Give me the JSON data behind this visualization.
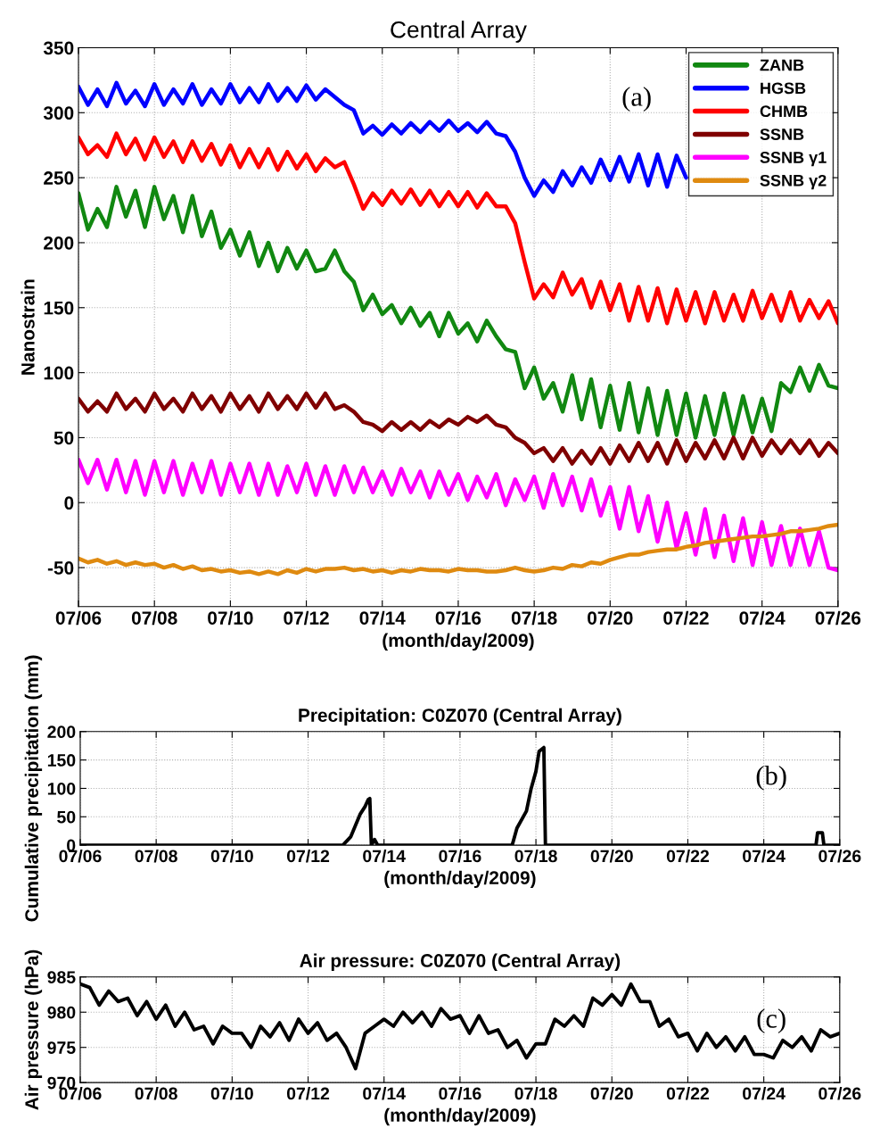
{
  "chart_data": [
    {
      "type": "line",
      "title": "Central Array",
      "xlabel": "(month/day/2009)",
      "ylabel": "Nanostrain",
      "legend": "top right",
      "grid": true,
      "annotations": [
        "(a)"
      ],
      "ylim": [
        -80,
        350
      ],
      "yticks": [
        -50,
        0,
        50,
        100,
        150,
        200,
        250,
        300,
        350
      ],
      "xlim": [
        "2009-07-06",
        "2009-07-26"
      ],
      "xticks": [
        {
          "value": "2009-07-06",
          "label": "07/06"
        },
        {
          "value": "2009-07-08",
          "label": "07/08"
        },
        {
          "value": "2009-07-10",
          "label": "07/10"
        },
        {
          "value": "2009-07-12",
          "label": "07/12"
        },
        {
          "value": "2009-07-14",
          "label": "07/14"
        },
        {
          "value": "2009-07-16",
          "label": "07/16"
        },
        {
          "value": "2009-07-18",
          "label": "07/18"
        },
        {
          "value": "2009-07-20",
          "label": "07/20"
        },
        {
          "value": "2009-07-22",
          "label": "07/22"
        },
        {
          "value": "2009-07-24",
          "label": "07/24"
        },
        {
          "value": "2009-07-26",
          "label": "07/26"
        }
      ],
      "x": [
        "2009-07-06T00:00",
        "2009-07-06T06:00",
        "2009-07-06T12:00",
        "2009-07-06T18:00",
        "2009-07-07T00:00",
        "2009-07-07T06:00",
        "2009-07-07T12:00",
        "2009-07-07T18:00",
        "2009-07-08T00:00",
        "2009-07-08T06:00",
        "2009-07-08T12:00",
        "2009-07-08T18:00",
        "2009-07-09T00:00",
        "2009-07-09T06:00",
        "2009-07-09T12:00",
        "2009-07-09T18:00",
        "2009-07-10T00:00",
        "2009-07-10T06:00",
        "2009-07-10T12:00",
        "2009-07-10T18:00",
        "2009-07-11T00:00",
        "2009-07-11T06:00",
        "2009-07-11T12:00",
        "2009-07-11T18:00",
        "2009-07-12T00:00",
        "2009-07-12T06:00",
        "2009-07-12T12:00",
        "2009-07-12T18:00",
        "2009-07-13T00:00",
        "2009-07-13T06:00",
        "2009-07-13T12:00",
        "2009-07-13T18:00",
        "2009-07-14T00:00",
        "2009-07-14T06:00",
        "2009-07-14T12:00",
        "2009-07-14T18:00",
        "2009-07-15T00:00",
        "2009-07-15T06:00",
        "2009-07-15T12:00",
        "2009-07-15T18:00",
        "2009-07-16T00:00",
        "2009-07-16T06:00",
        "2009-07-16T12:00",
        "2009-07-16T18:00",
        "2009-07-17T00:00",
        "2009-07-17T06:00",
        "2009-07-17T12:00",
        "2009-07-17T18:00",
        "2009-07-18T00:00",
        "2009-07-18T06:00",
        "2009-07-18T12:00",
        "2009-07-18T18:00",
        "2009-07-19T00:00",
        "2009-07-19T06:00",
        "2009-07-19T12:00",
        "2009-07-19T18:00",
        "2009-07-20T00:00",
        "2009-07-20T06:00",
        "2009-07-20T12:00",
        "2009-07-20T18:00",
        "2009-07-21T00:00",
        "2009-07-21T06:00",
        "2009-07-21T12:00",
        "2009-07-21T18:00",
        "2009-07-22T00:00",
        "2009-07-22T06:00",
        "2009-07-22T12:00",
        "2009-07-22T18:00",
        "2009-07-23T00:00",
        "2009-07-23T06:00",
        "2009-07-23T12:00",
        "2009-07-23T18:00",
        "2009-07-24T00:00",
        "2009-07-24T06:00",
        "2009-07-24T12:00",
        "2009-07-24T18:00",
        "2009-07-25T00:00",
        "2009-07-25T06:00",
        "2009-07-25T12:00",
        "2009-07-25T18:00",
        "2009-07-26T00:00"
      ],
      "series": [
        {
          "name": "ZANB",
          "color": "#118811",
          "values": [
            238,
            210,
            226,
            212,
            243,
            220,
            240,
            212,
            243,
            218,
            236,
            208,
            236,
            205,
            224,
            196,
            210,
            190,
            208,
            182,
            200,
            178,
            196,
            180,
            194,
            178,
            180,
            194,
            178,
            170,
            148,
            160,
            145,
            152,
            138,
            150,
            136,
            146,
            128,
            146,
            130,
            138,
            124,
            140,
            128,
            118,
            116,
            88,
            104,
            80,
            92,
            70,
            98,
            64,
            95,
            58,
            90,
            56,
            92,
            54,
            88,
            52,
            86,
            52,
            84,
            50,
            82,
            52,
            84,
            52,
            82,
            54,
            80,
            55,
            92,
            85,
            104,
            86,
            106,
            90,
            88
          ]
        },
        {
          "name": "HGSB",
          "color": "#0000ff",
          "values": [
            320,
            306,
            318,
            305,
            323,
            307,
            317,
            305,
            322,
            306,
            318,
            307,
            322,
            306,
            318,
            307,
            322,
            308,
            319,
            308,
            322,
            309,
            319,
            309,
            321,
            310,
            318,
            312,
            306,
            302,
            284,
            290,
            283,
            291,
            284,
            292,
            285,
            293,
            286,
            294,
            286,
            292,
            285,
            293,
            284,
            282,
            270,
            250,
            236,
            248,
            239,
            255,
            244,
            258,
            246,
            264,
            248,
            266,
            247,
            268,
            244,
            268,
            243,
            267,
            250,
            null,
            null,
            null,
            null,
            null,
            null,
            null,
            null,
            null,
            null,
            null,
            null,
            null,
            null,
            null,
            null
          ]
        },
        {
          "name": "CHMB",
          "color": "#ff0000",
          "values": [
            281,
            268,
            275,
            266,
            284,
            268,
            280,
            264,
            281,
            266,
            278,
            262,
            278,
            263,
            276,
            260,
            275,
            258,
            272,
            258,
            272,
            256,
            270,
            257,
            268,
            255,
            265,
            258,
            262,
            245,
            226,
            238,
            229,
            240,
            230,
            241,
            229,
            240,
            228,
            239,
            228,
            239,
            227,
            238,
            228,
            228,
            215,
            185,
            157,
            168,
            158,
            177,
            160,
            172,
            150,
            170,
            148,
            168,
            140,
            166,
            140,
            165,
            138,
            164,
            140,
            162,
            138,
            162,
            140,
            160,
            140,
            163,
            142,
            160,
            140,
            162,
            140,
            156,
            142,
            155,
            138
          ]
        },
        {
          "name": "SSNB",
          "color": "#800000",
          "values": [
            80,
            70,
            78,
            70,
            84,
            72,
            80,
            70,
            84,
            72,
            80,
            70,
            84,
            72,
            82,
            70,
            84,
            72,
            82,
            70,
            84,
            72,
            82,
            72,
            84,
            73,
            84,
            72,
            75,
            70,
            62,
            60,
            55,
            62,
            56,
            62,
            56,
            63,
            58,
            64,
            60,
            66,
            62,
            67,
            60,
            58,
            50,
            46,
            38,
            42,
            32,
            42,
            30,
            40,
            30,
            42,
            30,
            44,
            32,
            46,
            32,
            46,
            30,
            48,
            32,
            46,
            34,
            48,
            34,
            50,
            34,
            50,
            36,
            48,
            38,
            48,
            38,
            48,
            36,
            46,
            38
          ]
        },
        {
          "name": "SSNB γ1",
          "color": "#ff00ff",
          "values": [
            33,
            15,
            33,
            10,
            33,
            8,
            32,
            6,
            32,
            8,
            32,
            6,
            30,
            8,
            32,
            6,
            30,
            8,
            30,
            6,
            30,
            6,
            28,
            8,
            30,
            6,
            28,
            6,
            28,
            8,
            27,
            8,
            24,
            6,
            26,
            8,
            24,
            4,
            24,
            6,
            22,
            2,
            20,
            4,
            22,
            -2,
            18,
            2,
            20,
            -4,
            22,
            -2,
            20,
            -6,
            18,
            -10,
            12,
            -20,
            12,
            -22,
            5,
            -30,
            0,
            -35,
            -8,
            -40,
            -5,
            -42,
            -10,
            -45,
            -12,
            -48,
            -15,
            -48,
            -18,
            -48,
            -20,
            -48,
            -22,
            -50,
            -52
          ]
        },
        {
          "name": "SSNB γ2",
          "color": "#df8a10",
          "values": [
            -43,
            -46,
            -44,
            -47,
            -45,
            -48,
            -46,
            -48,
            -47,
            -50,
            -48,
            -51,
            -49,
            -52,
            -51,
            -53,
            -52,
            -54,
            -53,
            -55,
            -53,
            -55,
            -52,
            -54,
            -51,
            -53,
            -51,
            -51,
            -50,
            -52,
            -51,
            -53,
            -52,
            -54,
            -52,
            -53,
            -51,
            -52,
            -52,
            -53,
            -51,
            -52,
            -52,
            -53,
            -53,
            -52,
            -50,
            -52,
            -53,
            -52,
            -50,
            -51,
            -48,
            -49,
            -46,
            -47,
            -44,
            -42,
            -40,
            -40,
            -38,
            -37,
            -36,
            -36,
            -34,
            -33,
            -31,
            -30,
            -29,
            -28,
            -27,
            -26,
            -26,
            -25,
            -24,
            -22,
            -22,
            -21,
            -20,
            -18,
            -17
          ]
        }
      ]
    },
    {
      "type": "line",
      "title": "Precipitation: C0Z070 (Central Array)",
      "xlabel": "(month/day/2009)",
      "ylabel": "Cumulative precipitation (mm)",
      "grid": true,
      "annotations": [
        "(b)"
      ],
      "ylim": [
        0,
        200
      ],
      "yticks": [
        0,
        50,
        100,
        150,
        200
      ],
      "xlim": [
        "2009-07-06",
        "2009-07-26"
      ],
      "xticks": [
        {
          "value": "2009-07-06",
          "label": "07/06"
        },
        {
          "value": "2009-07-08",
          "label": "07/08"
        },
        {
          "value": "2009-07-10",
          "label": "07/10"
        },
        {
          "value": "2009-07-12",
          "label": "07/12"
        },
        {
          "value": "2009-07-14",
          "label": "07/14"
        },
        {
          "value": "2009-07-16",
          "label": "07/16"
        },
        {
          "value": "2009-07-18",
          "label": "07/18"
        },
        {
          "value": "2009-07-20",
          "label": "07/20"
        },
        {
          "value": "2009-07-22",
          "label": "07/22"
        },
        {
          "value": "2009-07-24",
          "label": "07/24"
        },
        {
          "value": "2009-07-26",
          "label": "07/26"
        }
      ],
      "x": [
        "2009-07-06T00:00",
        "2009-07-12T22:00",
        "2009-07-13T03:00",
        "2009-07-13T06:00",
        "2009-07-13T09:00",
        "2009-07-13T12:00",
        "2009-07-13T14:00",
        "2009-07-13T15:00",
        "2009-07-13T16:00",
        "2009-07-13T18:00",
        "2009-07-13T20:00",
        "2009-07-17T09:00",
        "2009-07-17T12:00",
        "2009-07-17T18:00",
        "2009-07-17T21:00",
        "2009-07-18T00:00",
        "2009-07-18T02:00",
        "2009-07-18T05:00",
        "2009-07-18T06:00",
        "2009-07-25T09:00",
        "2009-07-25T10:00",
        "2009-07-25T13:00",
        "2009-07-25T14:00",
        "2009-07-26T00:00"
      ],
      "series": [
        {
          "color": "#000000",
          "values": [
            0,
            0,
            15,
            35,
            55,
            68,
            80,
            82,
            0,
            10,
            0,
            0,
            30,
            60,
            100,
            130,
            165,
            172,
            0,
            0,
            22,
            22,
            0,
            0
          ]
        }
      ]
    },
    {
      "type": "line",
      "title": "Air pressure: C0Z070 (Central Array)",
      "xlabel": "(month/day/2009)",
      "ylabel": "Air pressure (hPa)",
      "grid": true,
      "annotations": [
        "(c)"
      ],
      "ylim": [
        970,
        985
      ],
      "yticks": [
        970,
        975,
        980,
        985
      ],
      "xlim": [
        "2009-07-06",
        "2009-07-26"
      ],
      "xticks": [
        {
          "value": "2009-07-06",
          "label": "07/06"
        },
        {
          "value": "2009-07-08",
          "label": "07/08"
        },
        {
          "value": "2009-07-10",
          "label": "07/10"
        },
        {
          "value": "2009-07-12",
          "label": "07/12"
        },
        {
          "value": "2009-07-14",
          "label": "07/14"
        },
        {
          "value": "2009-07-16",
          "label": "07/16"
        },
        {
          "value": "2009-07-18",
          "label": "07/18"
        },
        {
          "value": "2009-07-20",
          "label": "07/20"
        },
        {
          "value": "2009-07-22",
          "label": "07/22"
        },
        {
          "value": "2009-07-24",
          "label": "07/24"
        },
        {
          "value": "2009-07-26",
          "label": "07/26"
        }
      ],
      "x": [
        "2009-07-06T00:00",
        "2009-07-06T06:00",
        "2009-07-06T12:00",
        "2009-07-06T18:00",
        "2009-07-07T00:00",
        "2009-07-07T06:00",
        "2009-07-07T12:00",
        "2009-07-07T18:00",
        "2009-07-08T00:00",
        "2009-07-08T06:00",
        "2009-07-08T12:00",
        "2009-07-08T18:00",
        "2009-07-09T00:00",
        "2009-07-09T06:00",
        "2009-07-09T12:00",
        "2009-07-09T18:00",
        "2009-07-10T00:00",
        "2009-07-10T06:00",
        "2009-07-10T12:00",
        "2009-07-10T18:00",
        "2009-07-11T00:00",
        "2009-07-11T06:00",
        "2009-07-11T12:00",
        "2009-07-11T18:00",
        "2009-07-12T00:00",
        "2009-07-12T06:00",
        "2009-07-12T12:00",
        "2009-07-12T18:00",
        "2009-07-13T00:00",
        "2009-07-13T06:00",
        "2009-07-13T12:00",
        "2009-07-13T18:00",
        "2009-07-14T00:00",
        "2009-07-14T06:00",
        "2009-07-14T12:00",
        "2009-07-14T18:00",
        "2009-07-15T00:00",
        "2009-07-15T06:00",
        "2009-07-15T12:00",
        "2009-07-15T18:00",
        "2009-07-16T00:00",
        "2009-07-16T06:00",
        "2009-07-16T12:00",
        "2009-07-16T18:00",
        "2009-07-17T00:00",
        "2009-07-17T06:00",
        "2009-07-17T12:00",
        "2009-07-17T18:00",
        "2009-07-18T00:00",
        "2009-07-18T06:00",
        "2009-07-18T12:00",
        "2009-07-18T18:00",
        "2009-07-19T00:00",
        "2009-07-19T06:00",
        "2009-07-19T12:00",
        "2009-07-19T18:00",
        "2009-07-20T00:00",
        "2009-07-20T06:00",
        "2009-07-20T12:00",
        "2009-07-20T18:00",
        "2009-07-21T00:00",
        "2009-07-21T06:00",
        "2009-07-21T12:00",
        "2009-07-21T18:00",
        "2009-07-22T00:00",
        "2009-07-22T06:00",
        "2009-07-22T12:00",
        "2009-07-22T18:00",
        "2009-07-23T00:00",
        "2009-07-23T06:00",
        "2009-07-23T12:00",
        "2009-07-23T18:00",
        "2009-07-24T00:00",
        "2009-07-24T06:00",
        "2009-07-24T12:00",
        "2009-07-24T18:00",
        "2009-07-25T00:00",
        "2009-07-25T06:00",
        "2009-07-25T12:00",
        "2009-07-25T18:00",
        "2009-07-26T00:00"
      ],
      "series": [
        {
          "color": "#000000",
          "values": [
            984,
            983.5,
            981,
            983,
            981.5,
            982,
            979.5,
            981.5,
            979,
            981,
            978,
            980,
            977.5,
            978,
            975.5,
            978,
            977,
            977,
            975,
            978,
            976.5,
            978.5,
            976,
            979,
            977,
            978.5,
            976,
            977,
            975,
            972,
            977,
            978,
            979,
            978,
            980,
            978.5,
            980,
            978,
            980.5,
            979,
            979.5,
            977,
            979.5,
            977,
            977.5,
            975,
            976,
            973.5,
            975.5,
            975.5,
            979,
            978,
            979.5,
            978,
            982,
            981,
            982.5,
            981,
            984,
            981.5,
            981.5,
            978,
            979,
            976.5,
            977,
            974.5,
            977,
            975,
            976.5,
            974.5,
            976.5,
            974,
            974,
            973.5,
            976,
            975,
            976.5,
            974.5,
            977.5,
            976.5,
            977
          ]
        }
      ]
    }
  ]
}
